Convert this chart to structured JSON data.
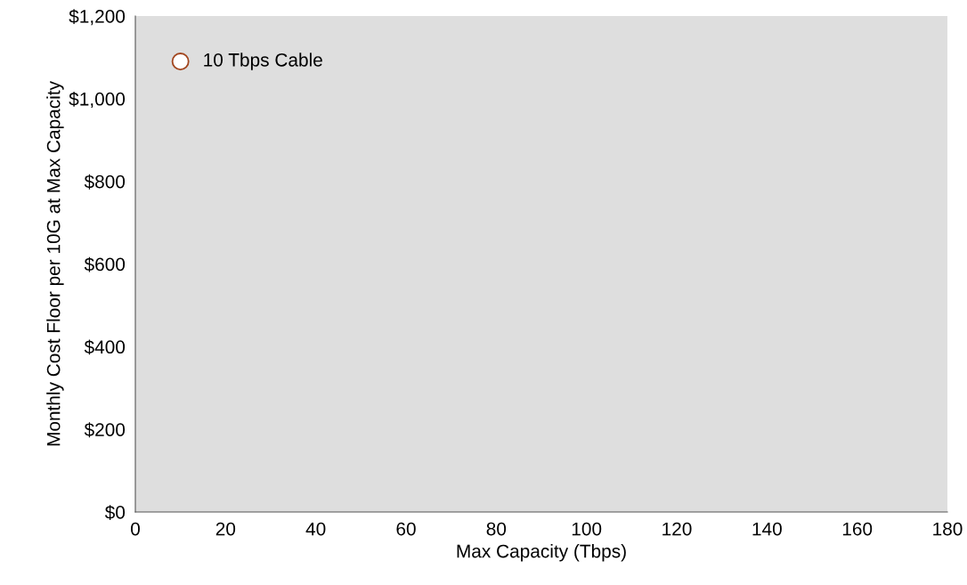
{
  "chart_data": {
    "type": "scatter",
    "xlabel": "Max Capacity (Tbps)",
    "ylabel": "Monthly Cost Floor per 10G at Max Capacity",
    "x": [
      10
    ],
    "values": [
      1090
    ],
    "color": "#a2461e",
    "marker": "circle",
    "grid": false,
    "legend": false,
    "xlim": [
      0,
      180
    ],
    "xticks": [
      0,
      20,
      40,
      60,
      80,
      100,
      120,
      140,
      160,
      180
    ],
    "ylim": [
      0,
      1200
    ],
    "yticks": [
      {
        "value": 0,
        "label": "$0"
      },
      {
        "value": 200,
        "label": "$200"
      },
      {
        "value": 400,
        "label": "$400"
      },
      {
        "value": 600,
        "label": "$600"
      },
      {
        "value": 800,
        "label": "$800"
      },
      {
        "value": 1000,
        "label": "$1,000"
      },
      {
        "value": 1200,
        "label": "$1,200"
      }
    ],
    "annotations": [
      {
        "text": "10 Tbps Cable",
        "x": 10,
        "y": 1090
      }
    ]
  }
}
